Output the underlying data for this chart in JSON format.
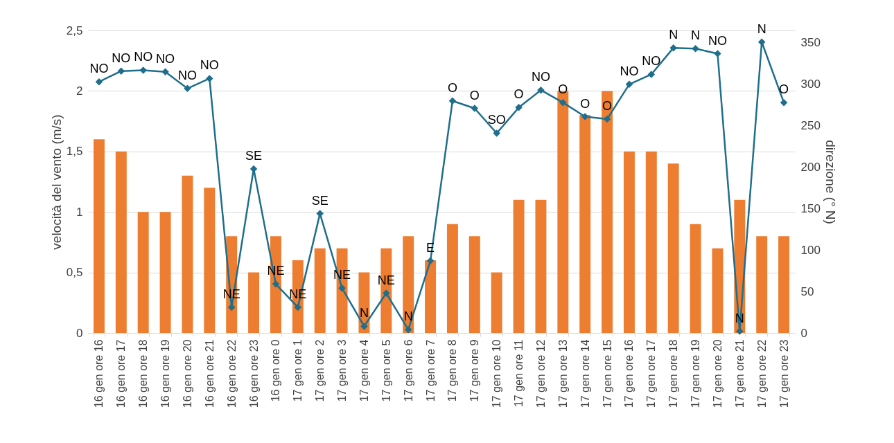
{
  "chart_data": {
    "type": "bar",
    "ylabel": "velocità del vento (m/s)",
    "y2label": "direzione (° N)",
    "categories": [
      "16 gen ore 16",
      "16 gen ore 17",
      "16 gen ore 18",
      "16 gen ore 19",
      "16 gen ore 20",
      "16 gen ore 21",
      "16 gen ore 22",
      "16 gen ore 23",
      "16 gen ore 0",
      "17 gen ore 1",
      "17 gen ore 2",
      "17 gen ore 3",
      "17 gen ore 4",
      "17 gen ore 5",
      "17 gen ore 6",
      "17 gen ore 7",
      "17 gen ore 8",
      "17 gen ore 9",
      "17 gen ore 10",
      "17 gen ore 11",
      "17 gen ore 12",
      "17 gen ore 13",
      "17 gen ore 14",
      "17 gen ore 15",
      "17 gen ore 16",
      "17 gen ore 17",
      "17 gen ore 18",
      "17 gen ore 19",
      "17 gen ore 20",
      "17 gen ore 21",
      "17 gen ore 22",
      "17 gen ore 23"
    ],
    "series": [
      {
        "color": "#ed7d31",
        "values": [
          1.6,
          1.5,
          1,
          1,
          1.3,
          1.2,
          0.8,
          0.5,
          0.8,
          0.6,
          0.7,
          0.7,
          0.5,
          0.7,
          0.8,
          0.6,
          0.9,
          0.8,
          0.5,
          1.1,
          1.1,
          2,
          1.8,
          2,
          1.5,
          1.5,
          1.4,
          0.9,
          0.7,
          1.1,
          0.8,
          0.8
        ]
      },
      {
        "type": "line",
        "axis": "y2",
        "color": "#1f6e8c",
        "marker": "diamond",
        "values": [
          303,
          316,
          317,
          315,
          295,
          307,
          31,
          198,
          59,
          31,
          144,
          54,
          8,
          48,
          4,
          87,
          280,
          271,
          241,
          272,
          293,
          278,
          261,
          258,
          300,
          312,
          344,
          343,
          337,
          2,
          351,
          278
        ],
        "value_labels": [
          "NO",
          "NO",
          "NO",
          "NO",
          "NO",
          "NO",
          "NE",
          "SE",
          "NE",
          "NE",
          "SE",
          "NE",
          "N",
          "NE",
          "N",
          "E",
          "O",
          "O",
          "SO",
          "O",
          "NO",
          "O",
          "O",
          "O",
          "NO",
          "NO",
          "N",
          "N",
          "NO",
          "N",
          "N",
          "O"
        ]
      }
    ],
    "ylim": [
      0,
      2.5
    ],
    "yticks": [
      0,
      {
        "value": 0.5,
        "label": "0,5"
      },
      1,
      {
        "value": 1.5,
        "label": "1,5"
      },
      2,
      {
        "value": 2.5,
        "label": "2,5"
      }
    ],
    "y2lim": [
      0,
      365
    ],
    "y2ticks": [
      0,
      50,
      100,
      150,
      200,
      250,
      300,
      350
    ],
    "grid": "y"
  }
}
